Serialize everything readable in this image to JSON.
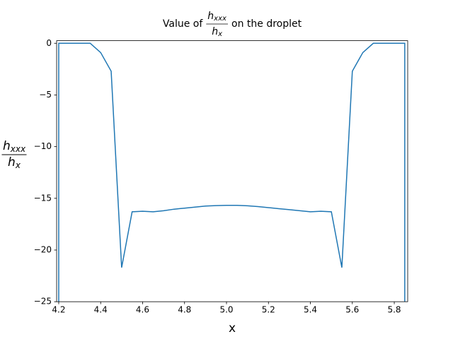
{
  "chart_data": {
    "type": "line",
    "title": {
      "prefix": "Value of",
      "numerator": {
        "base": "h",
        "sub": "xxx"
      },
      "denominator": {
        "base": "h",
        "sub": "x"
      },
      "suffix": "on the droplet"
    },
    "xlabel": "x",
    "ylabel": {
      "numerator": {
        "base": "h",
        "sub": "xxx"
      },
      "denominator": {
        "base": "h",
        "sub": "x"
      }
    },
    "x": [
      4.2,
      4.2,
      4.25,
      4.3,
      4.35,
      4.4,
      4.45,
      4.5,
      4.55,
      4.6,
      4.65,
      4.7,
      4.75,
      4.8,
      4.85,
      4.9,
      4.95,
      5.0,
      5.05,
      5.1,
      5.15,
      5.2,
      5.25,
      5.3,
      5.35,
      5.4,
      5.45,
      5.5,
      5.55,
      5.6,
      5.65,
      5.7,
      5.75,
      5.8,
      5.85,
      5.85
    ],
    "values": [
      -30,
      0,
      0,
      0,
      0,
      -0.9,
      -2.7,
      -21.7,
      -16.3,
      -16.25,
      -16.3,
      -16.2,
      -16.05,
      -15.95,
      -15.85,
      -15.75,
      -15.7,
      -15.68,
      -15.68,
      -15.72,
      -15.8,
      -15.9,
      -16.0,
      -16.1,
      -16.2,
      -16.3,
      -16.25,
      -16.3,
      -21.7,
      -2.7,
      -0.9,
      0,
      0,
      0,
      0,
      -30
    ],
    "color": "#1f77b4",
    "xlim": [
      4.19,
      5.864
    ],
    "ylim": [
      -25,
      0.25
    ],
    "xticks": [
      4.2,
      4.4,
      4.6,
      4.8,
      {
        "value": 5,
        "label": "5.0"
      },
      5.2,
      5.4,
      5.6,
      5.8
    ],
    "yticks": [
      0,
      {
        "value": -5,
        "label": "−5"
      },
      {
        "value": -10,
        "label": "−10"
      },
      {
        "value": -15,
        "label": "−15"
      },
      {
        "value": -20,
        "label": "−20"
      },
      {
        "value": -25,
        "label": "−25"
      }
    ],
    "grid": false
  }
}
